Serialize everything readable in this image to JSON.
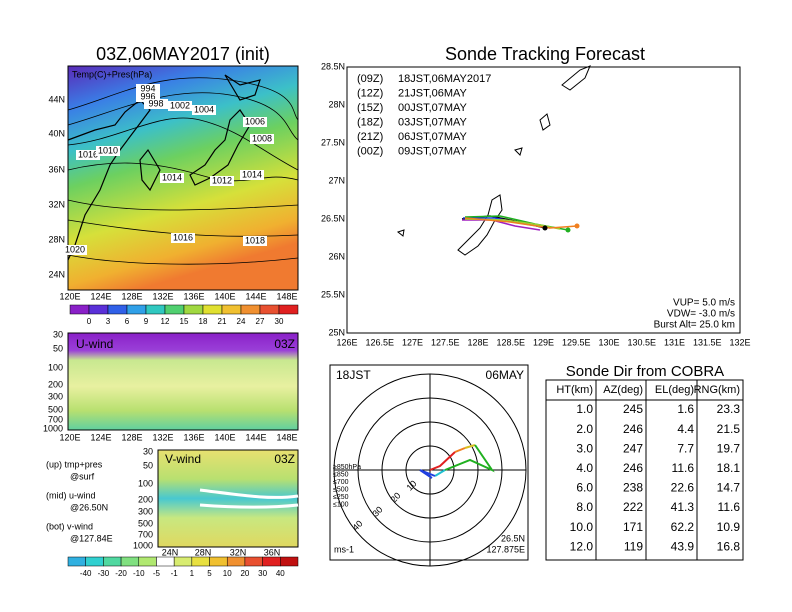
{
  "surface_map": {
    "title": "03Z,06MAY2017 (init)",
    "label": "Temp(C)+Pres(hPa)",
    "lat_labels": [
      "44N",
      "40N",
      "36N",
      "32N",
      "28N",
      "24N"
    ],
    "lon_labels": [
      "120E",
      "124E",
      "128E",
      "132E",
      "136E",
      "140E",
      "144E",
      "148E"
    ],
    "isobar_labels": [
      "994",
      "996",
      "998",
      "1002",
      "1004",
      "1006",
      "1008",
      "1016",
      "1010",
      "1014",
      "1012",
      "1014",
      "1016",
      "1018",
      "1020"
    ],
    "colorbar_labels": [
      "0",
      "3",
      "6",
      "9",
      "12",
      "15",
      "18",
      "21",
      "24",
      "27",
      "30"
    ]
  },
  "u_wind": {
    "label": "U-wind",
    "time": "03Z",
    "pressure_labels": [
      "30",
      "50",
      "100",
      "200",
      "300",
      "500",
      "700",
      "1000"
    ],
    "lon_labels": [
      "120E",
      "124E",
      "128E",
      "132E",
      "136E",
      "140E",
      "144E",
      "148E"
    ]
  },
  "v_wind": {
    "label": "V-wind",
    "time": "03Z",
    "pressure_labels": [
      "30",
      "50",
      "100",
      "200",
      "300",
      "500",
      "700",
      "1000"
    ],
    "lat_labels": [
      "24N",
      "28N",
      "32N",
      "36N"
    ]
  },
  "panel_legend": [
    "(up) tmp+pres",
    "@surf",
    "(mid) u-wind",
    "@26.50N",
    "(bot) v-wind",
    "@127.84E"
  ],
  "wind_colorbar_labels": [
    "-40",
    "-30",
    "-20",
    "-10",
    "-5",
    "-1",
    "1",
    "5",
    "10",
    "20",
    "30",
    "40"
  ],
  "tracking": {
    "title": "Sonde Tracking Forecast",
    "lat_labels": [
      "28.5N",
      "28N",
      "27.5N",
      "27N",
      "26.5N",
      "26N",
      "25.5N",
      "25N"
    ],
    "lon_labels": [
      "126E",
      "126.5E",
      "127E",
      "127.5E",
      "128E",
      "128.5E",
      "129E",
      "129.5E",
      "130E",
      "130.5E",
      "131E",
      "131.5E",
      "132E"
    ],
    "legend": [
      {
        "code": "(09Z)",
        "text": "18JST,06MAY2017",
        "color": "#000000"
      },
      {
        "code": "(12Z)",
        "text": "21JST,06MAY",
        "color": "#a020c0"
      },
      {
        "code": "(15Z)",
        "text": "00JST,07MAY",
        "color": "#2040e0"
      },
      {
        "code": "(18Z)",
        "text": "03JST,07MAY",
        "color": "#20b020"
      },
      {
        "code": "(21Z)",
        "text": "06JST,07MAY",
        "color": "#a0d030"
      },
      {
        "code": "(00Z)",
        "text": "09JST,07MAY",
        "color": "#f08020"
      }
    ],
    "info": [
      "VUP= 5.0 m/s",
      "VDW= -3.0 m/s",
      "Burst Alt= 25.0 km"
    ]
  },
  "hodograph": {
    "time": "18JST",
    "date": "06MAY",
    "range_labels": [
      "10",
      "20",
      "30",
      "40"
    ],
    "levels": [
      {
        "text": "≥850hPa",
        "color": "#e02020"
      },
      {
        "text": "≤850",
        "color": "#f08020"
      },
      {
        "text": "≤700",
        "color": "#d8c020"
      },
      {
        "text": "≤500",
        "color": "#20b020"
      },
      {
        "text": "≤250",
        "color": "#20c0d0"
      },
      {
        "text": "≤100",
        "color": "#2040e0"
      }
    ],
    "unit": "ms-1",
    "lat": "26.5N",
    "lon": "127.875E"
  },
  "table": {
    "title": "Sonde Dir from COBRA",
    "headers": [
      "HT(km)",
      "AZ(deg)",
      "EL(deg)",
      "RNG(km)"
    ],
    "rows": [
      [
        "1.0",
        "245",
        "1.6",
        "23.3"
      ],
      [
        "2.0",
        "246",
        "4.4",
        "21.5"
      ],
      [
        "3.0",
        "247",
        "7.7",
        "19.7"
      ],
      [
        "4.0",
        "246",
        "11.6",
        "18.1"
      ],
      [
        "6.0",
        "238",
        "22.6",
        "14.7"
      ],
      [
        "8.0",
        "222",
        "41.3",
        "11.6"
      ],
      [
        "10.0",
        "171",
        "62.2",
        "10.9"
      ],
      [
        "12.0",
        "119",
        "43.9",
        "16.8"
      ]
    ]
  }
}
